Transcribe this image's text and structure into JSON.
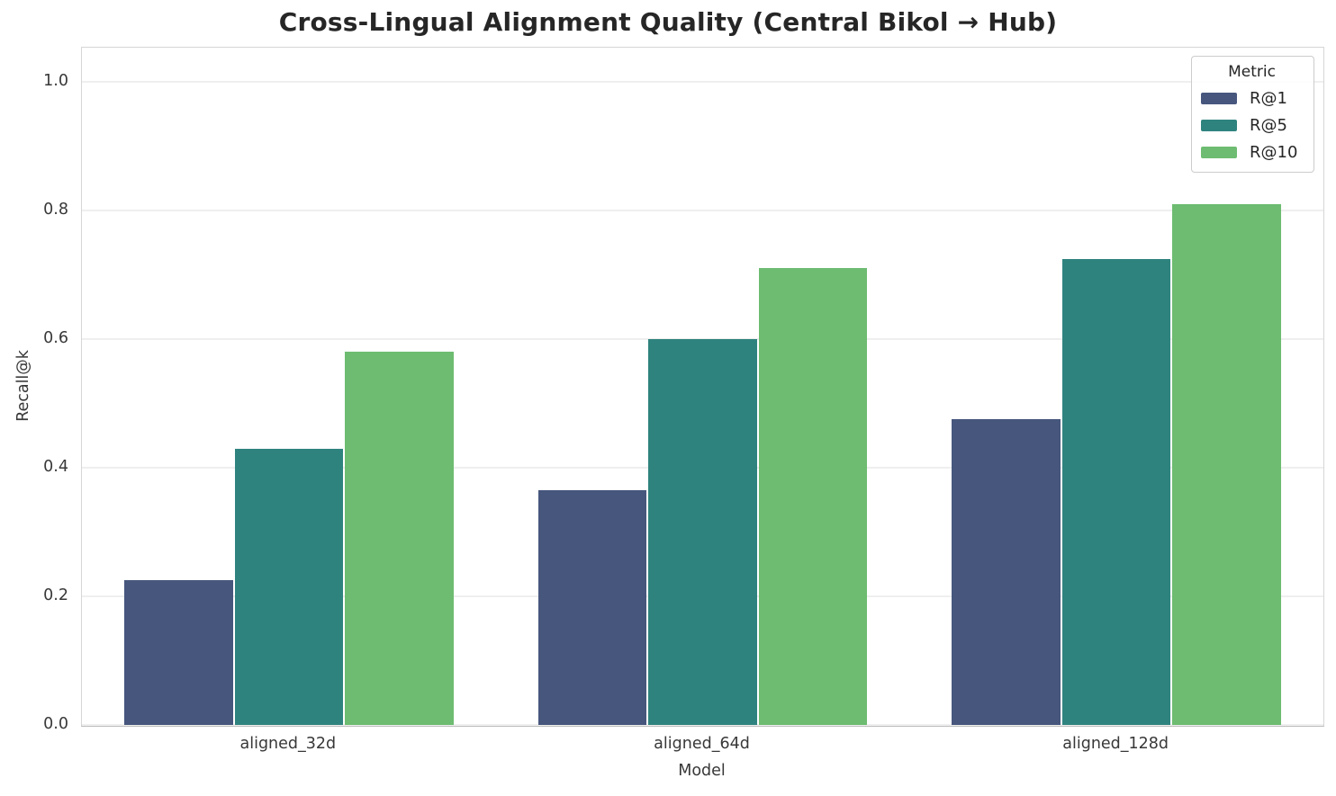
{
  "chart_data": {
    "type": "bar",
    "title": "Cross-Lingual Alignment Quality (Central Bikol → Hub)",
    "xlabel": "Model",
    "ylabel": "Recall@k",
    "categories": [
      "aligned_32d",
      "aligned_64d",
      "aligned_128d"
    ],
    "series": [
      {
        "name": "R@1",
        "color": "#46567D",
        "values": [
          0.225,
          0.365,
          0.475
        ]
      },
      {
        "name": "R@5",
        "color": "#2F837F",
        "values": [
          0.43,
          0.6,
          0.725
        ]
      },
      {
        "name": "R@10",
        "color": "#6DBC71",
        "values": [
          0.58,
          0.71,
          0.81
        ]
      }
    ],
    "legend": {
      "title": "Metric",
      "position": "upper right"
    },
    "ylim": [
      0,
      1.053
    ],
    "yticks": [
      "0.0",
      "0.2",
      "0.4",
      "0.6",
      "0.8",
      "1.0"
    ],
    "grid": "horizontal",
    "group_width_fraction": 0.8
  }
}
